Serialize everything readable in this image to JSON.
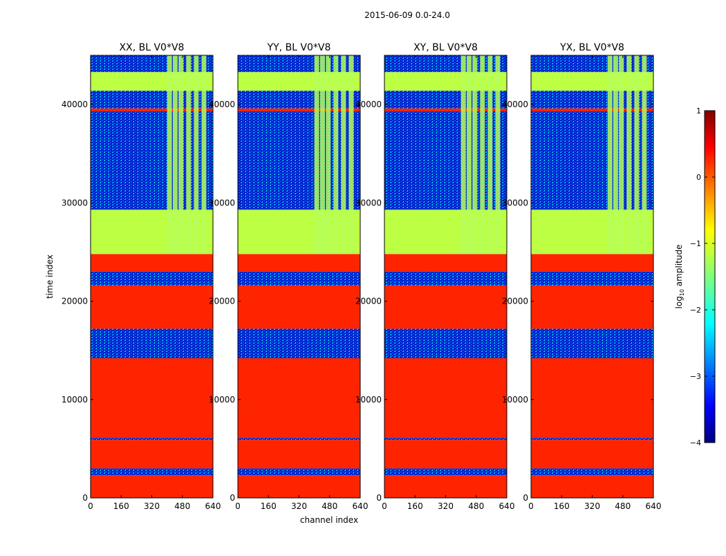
{
  "figure_title": "2015-06-09 0.0-24.0",
  "chart_data": {
    "type": "heatmap",
    "xlabel": "channel index",
    "ylabel": "time index",
    "xlim": [
      0,
      640
    ],
    "ylim": [
      0,
      45000
    ],
    "x_ticks": [
      0,
      160,
      320,
      480,
      640
    ],
    "y_ticks": [
      0,
      10000,
      20000,
      30000,
      40000
    ],
    "panels": [
      {
        "title": "XX, BL V0*V8",
        "x_tick_labels": [
          "0",
          "160",
          "320",
          "480",
          "640"
        ],
        "y_tick_labels": [
          "0",
          "10000",
          "20000",
          "30000",
          "40000"
        ]
      },
      {
        "title": "YY, BL V0*V8",
        "x_tick_labels": [
          "0",
          "160",
          "320",
          "480",
          "640"
        ],
        "y_tick_labels": [
          "0",
          "10000",
          "20000",
          "30000",
          "40000"
        ]
      },
      {
        "title": "XY, BL V0*V8",
        "x_tick_labels": [
          "0",
          "160",
          "320",
          "480",
          "640"
        ],
        "y_tick_labels": [
          "0",
          "10000",
          "20000",
          "30000",
          "40000"
        ]
      },
      {
        "title": "YX, BL V0*V8",
        "x_tick_labels": [
          "0",
          "160",
          "320",
          "480",
          "640"
        ],
        "y_tick_labels": [
          "0",
          "10000",
          "20000",
          "30000",
          "40000"
        ]
      }
    ],
    "bands": [
      {
        "from": 0,
        "to": 2300,
        "level": 0.2
      },
      {
        "from": 2300,
        "to": 3000,
        "level": -3.2
      },
      {
        "from": 3000,
        "to": 5900,
        "level": 0.2
      },
      {
        "from": 5900,
        "to": 6100,
        "level": -3.8
      },
      {
        "from": 6100,
        "to": 14200,
        "level": 0.2
      },
      {
        "from": 14200,
        "to": 17200,
        "level": -3.0
      },
      {
        "from": 17200,
        "to": 21600,
        "level": 0.2
      },
      {
        "from": 21600,
        "to": 23000,
        "level": -2.6
      },
      {
        "from": 23000,
        "to": 24800,
        "level": 0.2
      },
      {
        "from": 24800,
        "to": 29300,
        "level": -1.2
      },
      {
        "from": 29300,
        "to": 39300,
        "level": -3.0
      },
      {
        "from": 39300,
        "to": 39600,
        "level": 0.2
      },
      {
        "from": 39600,
        "to": 41400,
        "level": -3.0
      },
      {
        "from": 41400,
        "to": 43300,
        "level": -1.2
      },
      {
        "from": 43300,
        "to": 45000,
        "level": -2.6
      }
    ],
    "colorbar": {
      "label": "log10 amplitude",
      "range": [
        -4,
        1
      ],
      "ticks": [
        1,
        0,
        -1,
        -2,
        -3,
        -4
      ],
      "tick_labels": [
        "1",
        "0",
        "−1",
        "−2",
        "−3",
        "−4"
      ],
      "colormap": "jet"
    }
  }
}
